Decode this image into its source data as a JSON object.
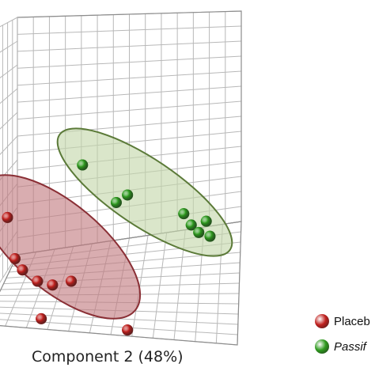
{
  "chart_data": {
    "type": "scatter",
    "subtype": "3d-pca-scores",
    "xlabel": "Component 2 (48%)",
    "grid": true,
    "legend_position": "bottom-right",
    "series": [
      {
        "name": "Placeb",
        "italic": false,
        "color": "#c0201e",
        "ellipse_fill": "#c27a7f",
        "ellipse_stroke": "#8a2f35",
        "points": [
          [
            0.02,
            0.58
          ],
          [
            0.04,
            0.69
          ],
          [
            0.06,
            0.72
          ],
          [
            0.1,
            0.75
          ],
          [
            0.14,
            0.76
          ],
          [
            0.19,
            0.75
          ],
          [
            0.11,
            0.85
          ],
          [
            0.34,
            0.88
          ]
        ]
      },
      {
        "name": "Passif",
        "italic": true,
        "color": "#2e9a1e",
        "ellipse_fill": "#c4d6a9",
        "ellipse_stroke": "#5b7a38",
        "points": [
          [
            0.22,
            0.44
          ],
          [
            0.31,
            0.54
          ],
          [
            0.34,
            0.52
          ],
          [
            0.49,
            0.57
          ],
          [
            0.51,
            0.6
          ],
          [
            0.55,
            0.59
          ],
          [
            0.53,
            0.62
          ],
          [
            0.56,
            0.63
          ]
        ]
      }
    ]
  }
}
